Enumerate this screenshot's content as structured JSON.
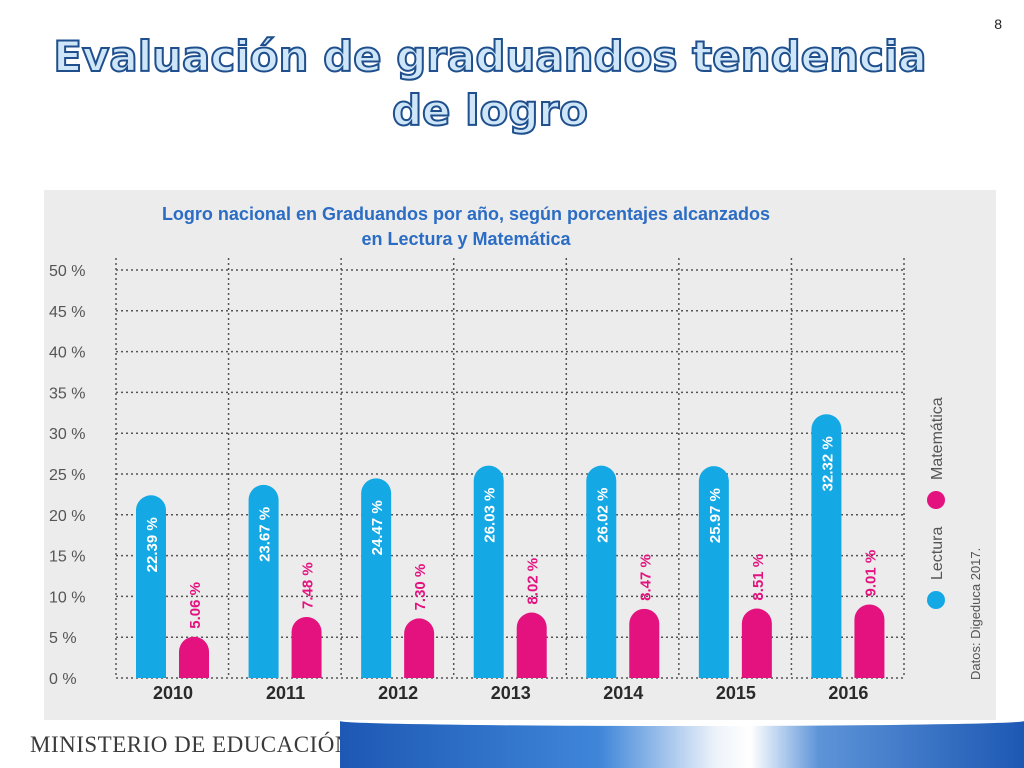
{
  "slide": {
    "number": "8",
    "title_line1": "Evaluación de graduandos tendencia",
    "title_line2": "de logro",
    "footer": "MINISTERIO DE EDUCACIÓN"
  },
  "colors": {
    "lectura": "#14a8e4",
    "matematica": "#e3127e",
    "title_fill": "#cfe6f8",
    "title_stroke": "#1f4f8c",
    "chart_title": "#2b6cc4"
  },
  "chart_data": {
    "type": "bar",
    "title": "Logro nacional en Graduandos por año, según porcentajes alcanzados en Lectura y Matemática",
    "title_line1": "Logro nacional en Graduandos por año, según porcentajes alcanzados",
    "title_line2": "en Lectura y Matemática",
    "categories": [
      "2010",
      "2011",
      "2012",
      "2013",
      "2014",
      "2015",
      "2016"
    ],
    "series": [
      {
        "name": "Lectura",
        "values": [
          22.39,
          23.67,
          24.47,
          26.03,
          26.02,
          25.97,
          32.32
        ],
        "labels": [
          "22.39 %",
          "23.67 %",
          "24.47 %",
          "26.03 %",
          "26.02 %",
          "25.97 %",
          "32.32 %"
        ]
      },
      {
        "name": "Matemática",
        "values": [
          5.06,
          7.48,
          7.3,
          8.02,
          8.47,
          8.51,
          9.01
        ],
        "labels": [
          "5.06 %",
          "7.48 %",
          "7.30 %",
          "8.02 %",
          "8.47 %",
          "8.51 %",
          "9.01 %"
        ]
      }
    ],
    "y_ticks": [
      "0 %",
      "5 %",
      "10 %",
      "15 %",
      "20 %",
      "25 %",
      "30 %",
      "35 %",
      "40 %",
      "45 %",
      "50 %"
    ],
    "ylim": [
      0,
      50
    ],
    "grid": true,
    "legend_position": "right, vertical",
    "source": "Datos: Digeduca 2017."
  }
}
